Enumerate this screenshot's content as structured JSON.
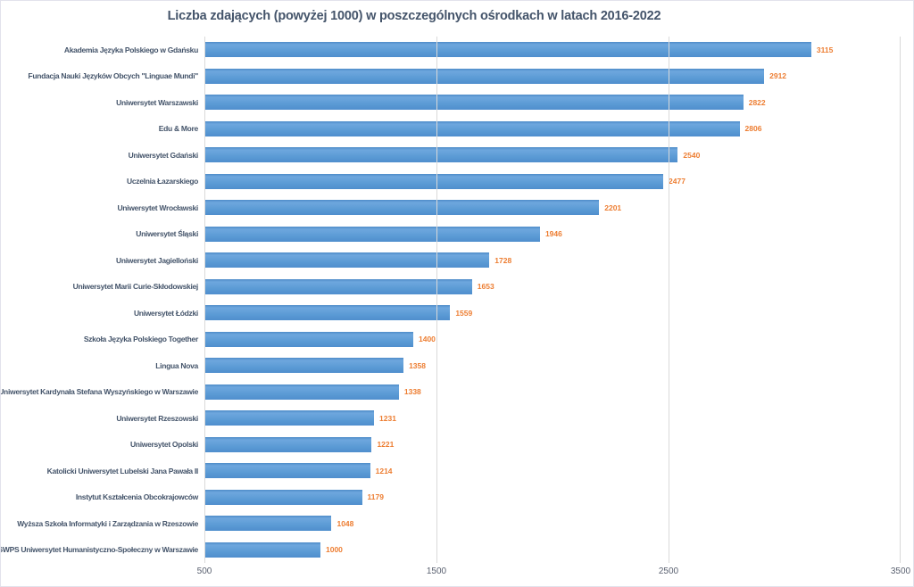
{
  "chart_data": {
    "type": "bar",
    "orientation": "horizontal",
    "title": "Liczba zdających (powyżej 1000) w poszczególnych ośrodkach w latach 2016-2022",
    "categories": [
      "Akademia Języka Polskiego w Gdańsku",
      "Fundacja Nauki Języków Obcych \"Linguae Mundi\"",
      "Uniwersytet Warszawski",
      "Edu & More",
      "Uniwersytet Gdański",
      "Uczelnia Łazarskiego",
      "Uniwersytet Wrocławski",
      "Uniwersytet Śląski",
      "Uniwersytet Jagielloński",
      "Uniwersytet Marii Curie-Skłodowskiej",
      "Uniwersytet Łódzki",
      "Szkoła Języka Polskiego Together",
      "Lingua Nova",
      "Uniwersytet Kardynała Stefana Wyszyńskiego w Warszawie",
      "Uniwersytet Rzeszowski",
      "Uniwersytet Opolski",
      "Katolicki Uniwersytet Lubelski Jana Pawała II",
      "Instytut Kształcenia Obcokrajowców",
      "Wyższa Szkoła Informatyki i Zarządzania w Rzeszowie",
      "SWPS Uniwersytet Humanistyczno-Społeczny w Warszawie"
    ],
    "values": [
      3115,
      2912,
      2822,
      2806,
      2540,
      2477,
      2201,
      1946,
      1728,
      1653,
      1559,
      1400,
      1358,
      1338,
      1231,
      1221,
      1214,
      1179,
      1048,
      1000
    ],
    "xlabel": "",
    "ylabel": "",
    "xlim": [
      500,
      3500
    ],
    "x_ticks": [
      500,
      1500,
      2500,
      3500
    ],
    "grid": true,
    "legend": false,
    "colors": {
      "bar": "#5B9BD5",
      "value_label": "#ED7D31",
      "title": "#44546A",
      "category_label": "#44546A",
      "axis_tick": "#5A6170",
      "gridline": "#D9D9D9",
      "background": "#FFFFFF"
    }
  }
}
